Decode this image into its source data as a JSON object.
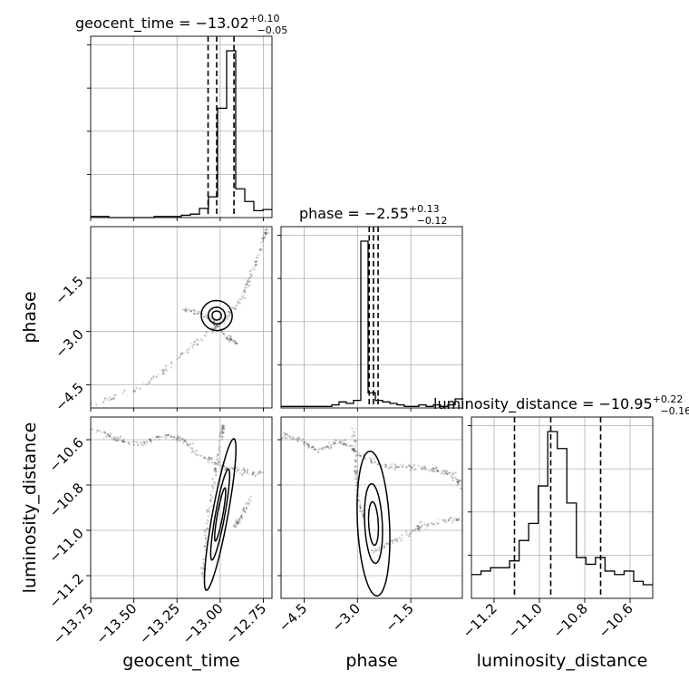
{
  "chart_data": {
    "type": "corner",
    "parameters": [
      "geocent_time",
      "phase",
      "luminosity_distance"
    ],
    "axis_labels": [
      "geocent_time",
      "phase",
      "luminosity_distance"
    ],
    "ranges": {
      "geocent_time": [
        -13.75,
        -12.7
      ],
      "phase": [
        -5.15,
        -0.05
      ],
      "luminosity_distance": [
        -11.3,
        -10.5
      ]
    },
    "ticks": {
      "geocent_time": [
        -13.75,
        -13.5,
        -13.25,
        -13.0,
        -12.75
      ],
      "phase": [
        -4.5,
        -3.0,
        -1.5
      ],
      "luminosity_distance": [
        -11.2,
        -11.0,
        -10.8,
        -10.6
      ]
    },
    "tick_labels": {
      "geocent_time": [
        "−13.75",
        "−13.50",
        "−13.25",
        "−13.00",
        "−12.75"
      ],
      "phase": [
        "−4.5",
        "−3.0",
        "−1.5"
      ],
      "luminosity_distance": [
        "−11.2",
        "−11.0",
        "−10.8",
        "−10.6"
      ]
    },
    "titles": [
      {
        "param": "geocent_time",
        "label": "geocent_time = ",
        "median": "−13.02",
        "plus": "+0.10",
        "minus": "−0.05"
      },
      {
        "param": "phase",
        "label": "phase = ",
        "median": "−2.55",
        "plus": "+0.13",
        "minus": "−0.12"
      },
      {
        "param": "luminosity_distance",
        "label": "luminosity_distance = ",
        "median": "−10.95",
        "plus": "+0.22",
        "minus": "−0.16"
      }
    ],
    "quantile_lines": {
      "geocent_time": [
        -13.07,
        -13.02,
        -12.92
      ],
      "phase": [
        -2.67,
        -2.55,
        -2.42
      ],
      "luminosity_distance": [
        -11.11,
        -10.95,
        -10.73
      ]
    },
    "histograms": {
      "geocent_time": {
        "range": [
          -13.75,
          -12.7
        ],
        "counts": [
          1,
          1,
          0,
          0,
          0,
          0,
          0,
          1,
          1,
          1,
          2,
          3,
          8,
          18,
          95,
          145,
          25,
          14,
          6,
          7
        ]
      },
      "phase": {
        "range": [
          -5.15,
          -0.05
        ],
        "counts": [
          1,
          1,
          1,
          1,
          1,
          1,
          1,
          2,
          4,
          3,
          5,
          110,
          10,
          5,
          4,
          3,
          2,
          1,
          1,
          2,
          1,
          2,
          1,
          2,
          6
        ]
      },
      "luminosity_distance": {
        "range": [
          -11.3,
          -10.5
        ],
        "counts": [
          7,
          8,
          9,
          9,
          11,
          17,
          22,
          33,
          49,
          44,
          28,
          12,
          10,
          12,
          8,
          7,
          8,
          5,
          4
        ]
      }
    },
    "grid": true,
    "contour_levels": 4
  }
}
